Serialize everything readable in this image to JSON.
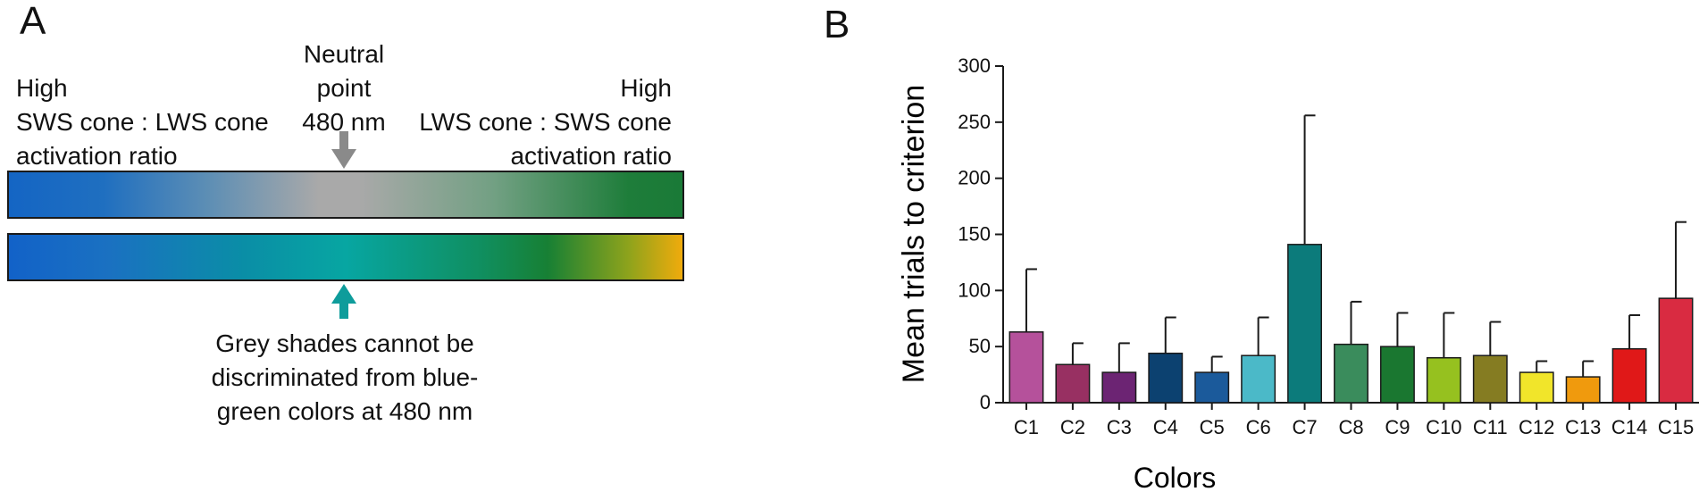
{
  "panel_a": {
    "letter": "A",
    "left_label": [
      "High",
      "SWS cone : LWS cone",
      "activation ratio"
    ],
    "center_label": [
      "Neutral",
      "point",
      "480 nm"
    ],
    "right_label": [
      "High",
      "LWS cone : SWS cone",
      "activation ratio"
    ],
    "bottom_label": [
      "Grey shades cannot be",
      "discriminated from blue-",
      "green colors at 480 nm"
    ],
    "colors": {
      "grey_arrow": "#8a8a8a",
      "teal_arrow": "#0e9c9b"
    }
  },
  "panel_b": {
    "letter": "B"
  },
  "chart_data": {
    "type": "bar",
    "title": "",
    "xlabel": "Colors",
    "ylabel": "Mean trials to criterion",
    "ylim": [
      0,
      300
    ],
    "yticks": [
      0,
      50,
      100,
      150,
      200,
      250,
      300
    ],
    "categories": [
      "C1",
      "C2",
      "C3",
      "C4",
      "C5",
      "C6",
      "C7",
      "C8",
      "C9",
      "C10",
      "C11",
      "C12",
      "C13",
      "C14",
      "C15"
    ],
    "values": [
      63,
      34,
      27,
      44,
      27,
      42,
      141,
      52,
      50,
      40,
      42,
      27,
      23,
      48,
      93
    ],
    "error_upper": [
      119,
      53,
      53,
      76,
      41,
      76,
      256,
      90,
      80,
      80,
      72,
      37,
      37,
      78,
      161
    ],
    "colors": [
      "#b5519b",
      "#983062",
      "#6c2473",
      "#0c4170",
      "#1b5a9b",
      "#4bb9c8",
      "#0c7b7b",
      "#3a8c5c",
      "#1a7730",
      "#96c11f",
      "#857c22",
      "#f1e52a",
      "#f09a0d",
      "#e01818",
      "#d92b41"
    ]
  }
}
